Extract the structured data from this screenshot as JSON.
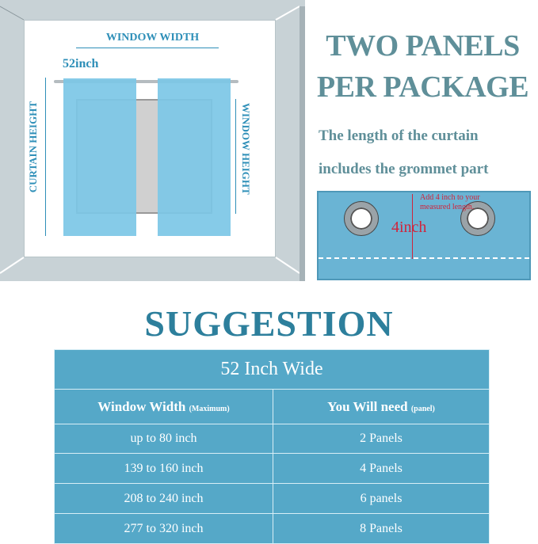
{
  "diagram": {
    "window_width": "WINDOW WIDTH",
    "curtain_width": "52inch",
    "curtain_height": "CURTAIN HEIGHT",
    "window_height": "WINDOW HEIGHT"
  },
  "header": {
    "line1": "TWO PANELS",
    "line2": "PER PACKAGE"
  },
  "note": {
    "line1": "The length of the curtain",
    "line2": "includes the grommet  part"
  },
  "grommet": {
    "measure": "4inch",
    "hint_line1": "Add 4 inch to your",
    "hint_line2": "measured length.",
    "accent": "#d0243c"
  },
  "suggestion": {
    "title": "SUGGESTION",
    "table_title": "52 Inch Wide",
    "col1": "Window Width",
    "col1_note": "(Maximum)",
    "col2": "You Will need",
    "col2_note": "(panel)",
    "rows": [
      [
        "up to 80 inch",
        "2 Panels"
      ],
      [
        "139 to 160 inch",
        "4 Panels"
      ],
      [
        "208 to 240 inch",
        "6 panels"
      ],
      [
        "277 to 320 inch",
        "8 Panels"
      ]
    ]
  },
  "colors": {
    "table": "#55a8c8",
    "title": "#2d7f9c",
    "curtain": "#7cc7e6"
  }
}
